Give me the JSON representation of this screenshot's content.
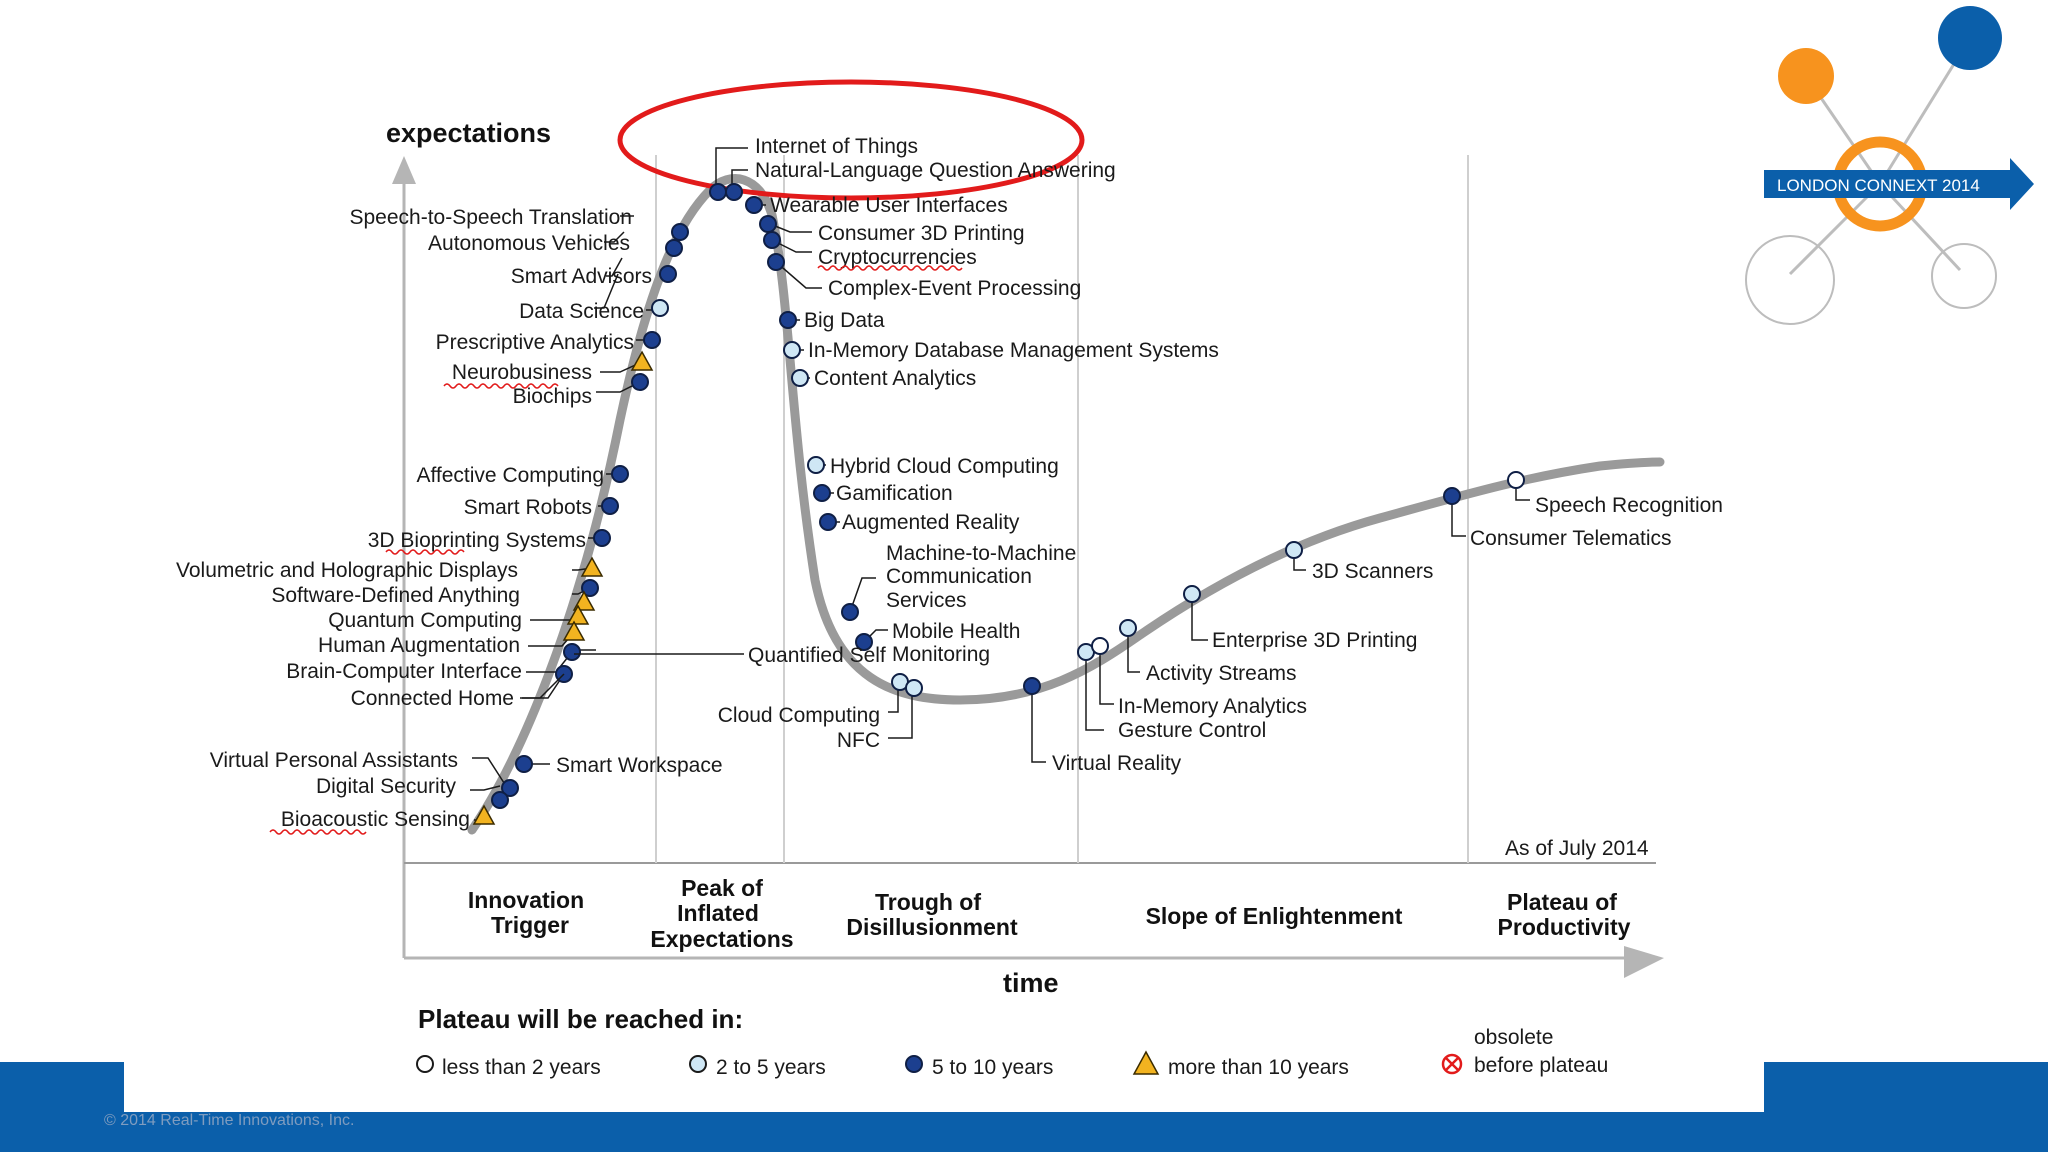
{
  "slide": {
    "footer_copyright": "© 2014 Real-Time Innovations, Inc.",
    "footer_color": "#0b5faa"
  },
  "logo": {
    "text": "LONDON CONNEXT 2014",
    "orange": "#f7931e",
    "blue": "#0b5faa"
  },
  "chart": {
    "y_axis_label": "expectations",
    "x_axis_label": "time",
    "as_of": "As of July 2014",
    "phases": [
      [
        "Innovation",
        "Trigger"
      ],
      [
        "Peak of",
        "Inflated",
        "Expectations"
      ],
      [
        "Trough of",
        "Disillusionment"
      ],
      [
        "Slope of Enlightenment"
      ],
      [
        "Plateau of",
        "Productivity"
      ]
    ],
    "legend": {
      "title": "Plateau will be reached in:",
      "less_2": "less than 2 years",
      "two_5": "2 to 5 years",
      "five_10": "5 to 10 years",
      "more_10": "more than 10 years",
      "obsolete_1": "obsolete",
      "obsolete_2": "before plateau"
    },
    "colors": {
      "curve": "#9a9a9a",
      "dark_blue": "#1c3f8f",
      "light_blue": "#cfe7f5",
      "triangle": "#f2b320",
      "highlight_circle": "#e21b1b",
      "obsolete": "#e21b1b"
    }
  },
  "technologies": [
    {
      "name": "Internet of Things",
      "status": "5 to 10 years"
    },
    {
      "name": "Natural-Language Question Answering",
      "status": "5 to 10 years"
    },
    {
      "name": "Wearable User Interfaces",
      "status": "5 to 10 years"
    },
    {
      "name": "Consumer 3D Printing",
      "status": "5 to 10 years"
    },
    {
      "name": "Cryptocurrencies",
      "status": "5 to 10 years"
    },
    {
      "name": "Complex-Event Processing",
      "status": "5 to 10 years"
    },
    {
      "name": "Big Data",
      "status": "5 to 10 years"
    },
    {
      "name": "In-Memory Database Management Systems",
      "status": "2 to 5 years"
    },
    {
      "name": "Content Analytics",
      "status": "2 to 5 years"
    },
    {
      "name": "Hybrid Cloud Computing",
      "status": "2 to 5 years"
    },
    {
      "name": "Gamification",
      "status": "5 to 10 years"
    },
    {
      "name": "Augmented Reality",
      "status": "5 to 10 years"
    },
    {
      "name": "Machine-to-Machine",
      "name2": "Communication",
      "name3": "Services",
      "status": "5 to 10 years"
    },
    {
      "name": "Mobile Health",
      "name2": "Monitoring",
      "status": "5 to 10 years"
    },
    {
      "name": "Cloud Computing",
      "status": "2 to 5 years"
    },
    {
      "name": "NFC",
      "status": "2 to 5 years"
    },
    {
      "name": "Virtual Reality",
      "status": "5 to 10 years"
    },
    {
      "name": "Gesture Control",
      "status": "2 to 5 years"
    },
    {
      "name": "In-Memory Analytics",
      "status": "less than 2 years"
    },
    {
      "name": "Activity Streams",
      "status": "2 to 5 years"
    },
    {
      "name": "Enterprise 3D Printing",
      "status": "2 to 5 years"
    },
    {
      "name": "3D Scanners",
      "status": "2 to 5 years"
    },
    {
      "name": "Consumer Telematics",
      "status": "5 to 10 years"
    },
    {
      "name": "Speech Recognition",
      "status": "less than 2 years"
    },
    {
      "name": "Speech-to-Speech Translation",
      "status": "5 to 10 years"
    },
    {
      "name": "Autonomous Vehicles",
      "status": "5 to 10 years"
    },
    {
      "name": "Smart Advisors",
      "status": "5 to 10 years"
    },
    {
      "name": "Data Science",
      "status": "2 to 5 years"
    },
    {
      "name": "Prescriptive Analytics",
      "status": "5 to 10 years"
    },
    {
      "name": "Neurobusiness",
      "status": "more than 10 years"
    },
    {
      "name": "Biochips",
      "status": "5 to 10 years"
    },
    {
      "name": "Affective Computing",
      "status": "5 to 10 years"
    },
    {
      "name": "Smart Robots",
      "status": "5 to 10 years"
    },
    {
      "name": "3D Bioprinting Systems",
      "status": "5 to 10 years"
    },
    {
      "name": "Volumetric and Holographic Displays",
      "status": "more than 10 years"
    },
    {
      "name": "Software-Defined Anything",
      "status": "5 to 10 years"
    },
    {
      "name": "Quantum Computing",
      "status": "more than 10 years"
    },
    {
      "name": "Human Augmentation",
      "status": "more than 10 years"
    },
    {
      "name": "Quantified Self",
      "status": "5 to 10 years"
    },
    {
      "name": "Brain-Computer Interface",
      "status": "5 to 10 years"
    },
    {
      "name": "Connected Home",
      "status": "5 to 10 years"
    },
    {
      "name": "Virtual Personal Assistants",
      "status": "5 to 10 years"
    },
    {
      "name": "Smart Workspace",
      "status": "5 to 10 years"
    },
    {
      "name": "Digital Security",
      "status": "5 to 10 years"
    },
    {
      "name": "Bioacoustic Sensing",
      "status": "more than 10 years"
    }
  ]
}
